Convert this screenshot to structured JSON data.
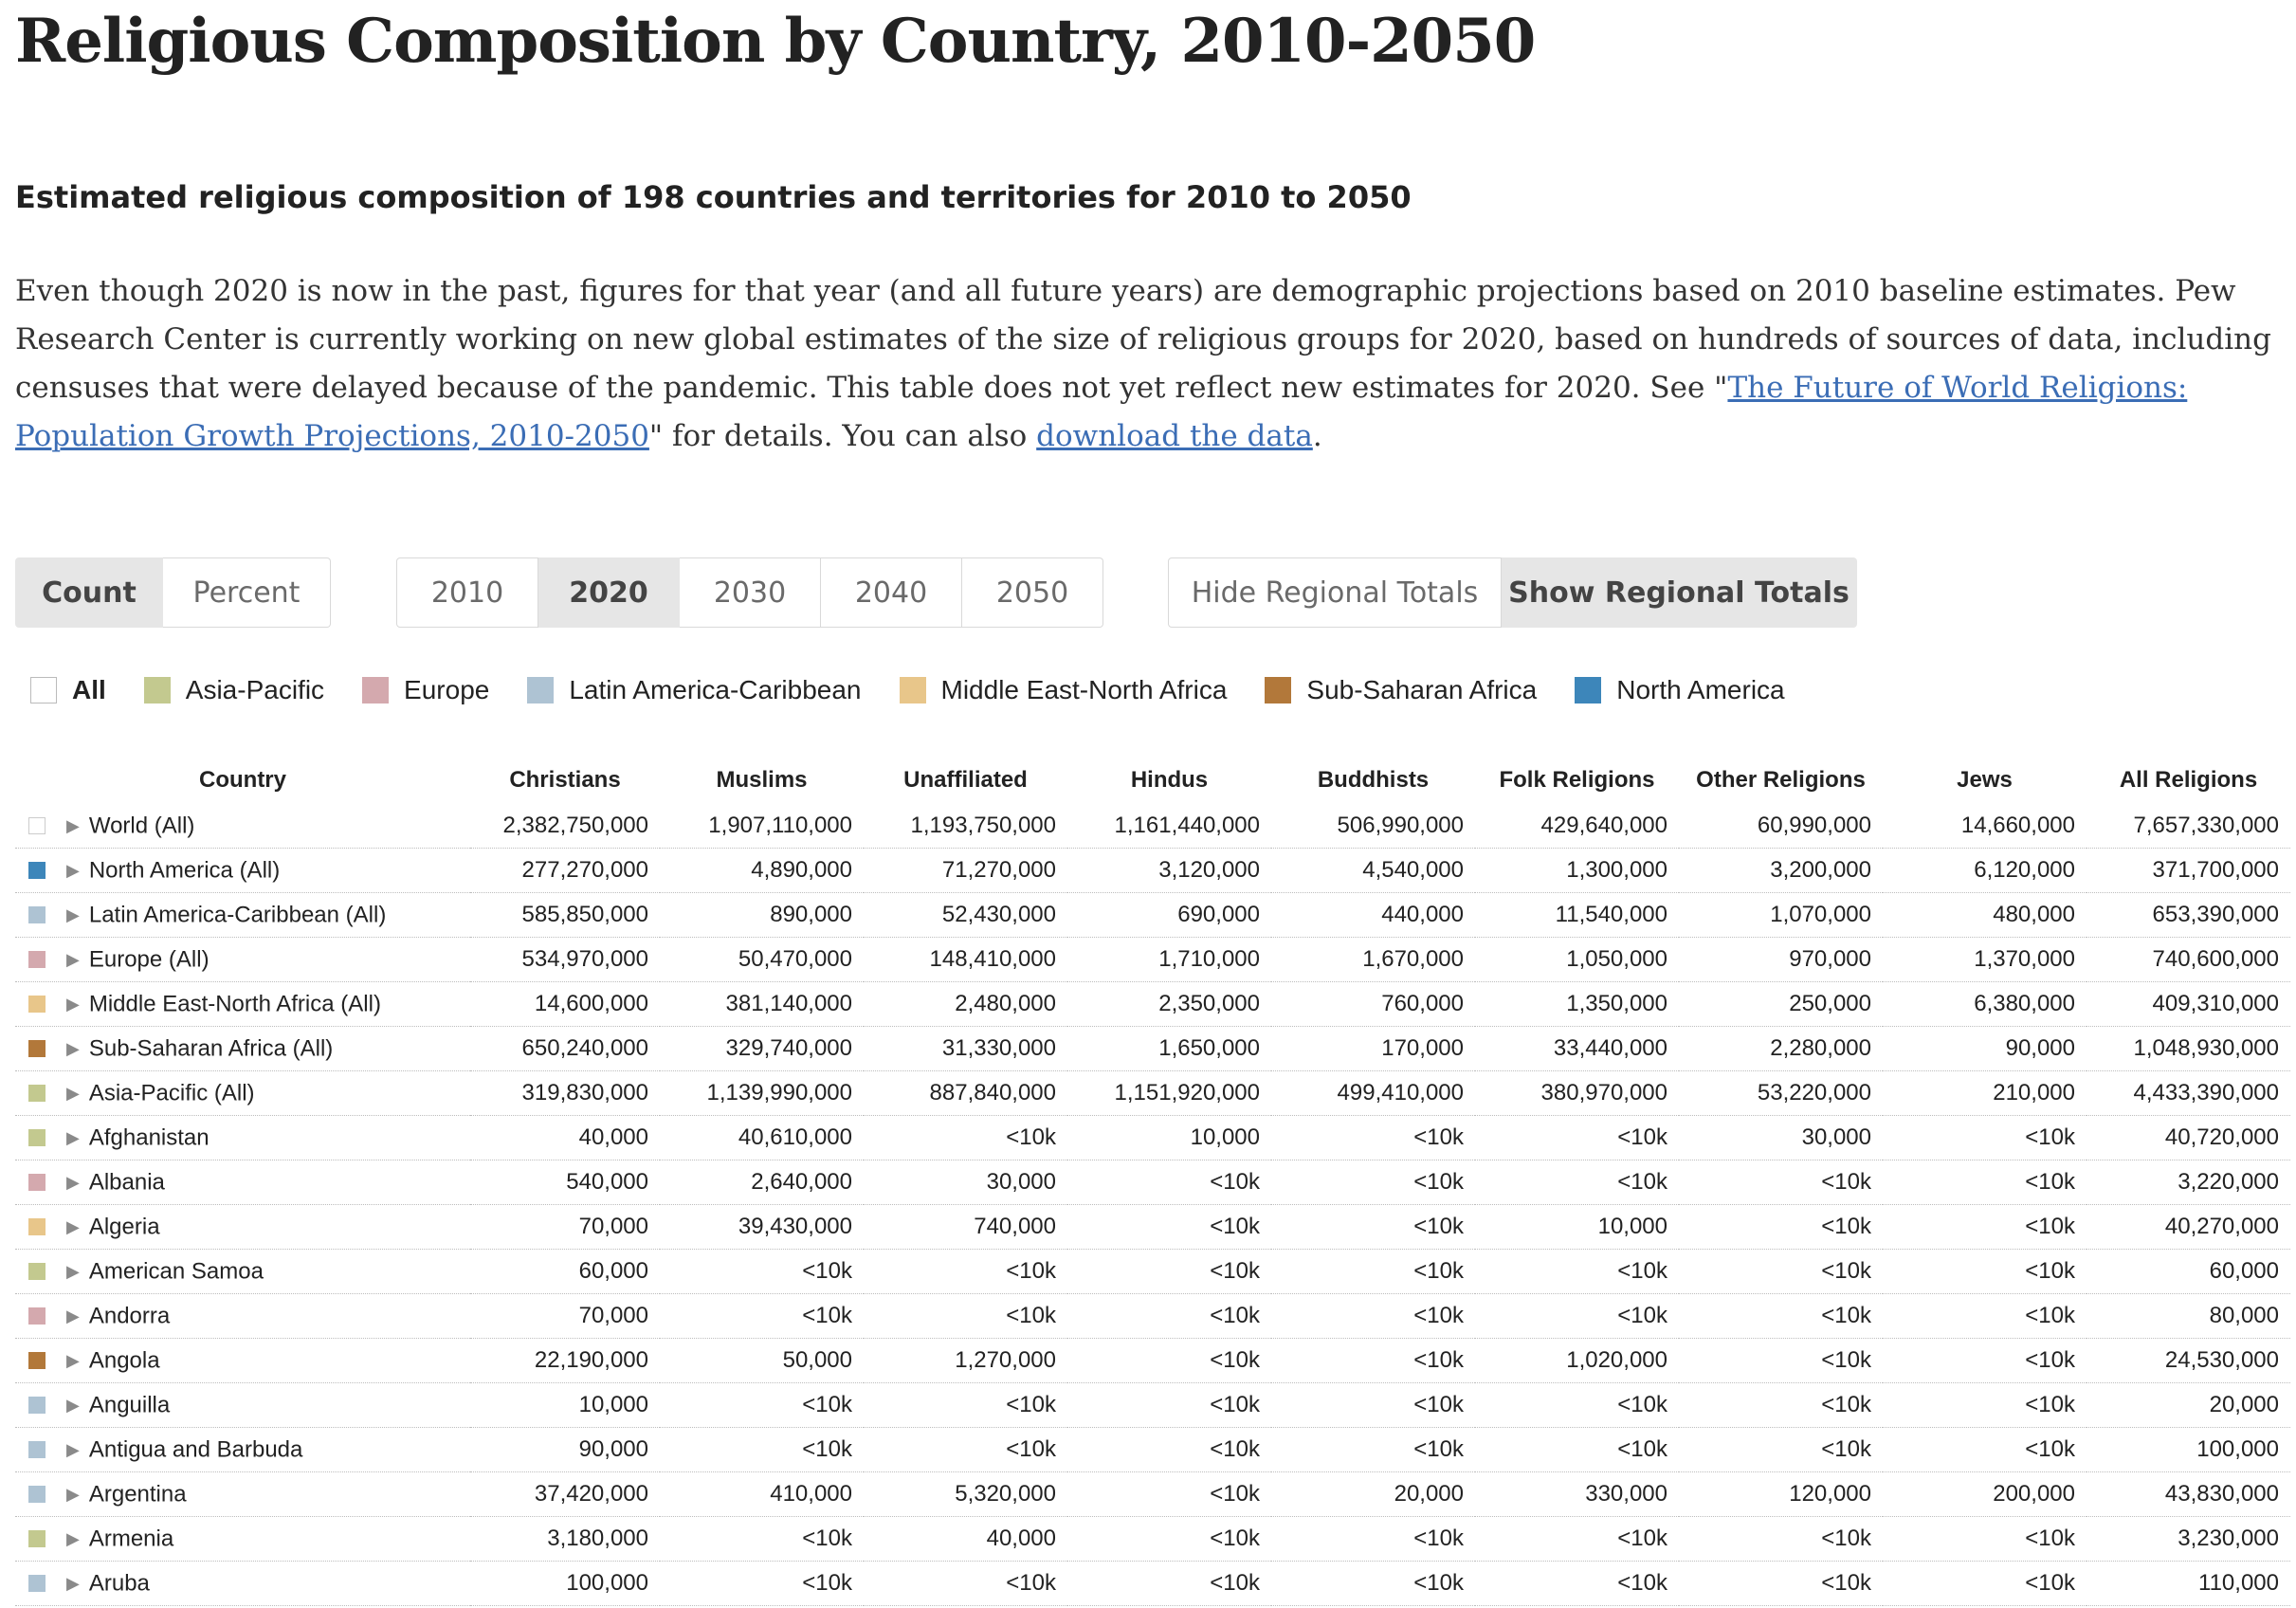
{
  "title": "Religious Composition by Country, 2010-2050",
  "subtitle": "Estimated religious composition of 198 countries and territories for 2010 to 2050",
  "description": {
    "part1": "Even though 2020 is now in the past, figures for that year (and all future years) are demographic projections based on 2010 baseline estimates. Pew Research Center is currently working on new global estimates of the size of religious groups for 2020, based on hundreds of sources of data, including censuses that were delayed because of the pandemic. This table does not yet reflect new estimates for 2020. See \"",
    "link1": "The Future of World Religions: Population Growth Projections, 2010-2050",
    "part2": "\" for details. You can also ",
    "link2": "download the data",
    "part3": "."
  },
  "controls": {
    "mode": [
      {
        "label": "Count",
        "active": true
      },
      {
        "label": "Percent",
        "active": false
      }
    ],
    "years": [
      {
        "label": "2010",
        "active": false
      },
      {
        "label": "2020",
        "active": true
      },
      {
        "label": "2030",
        "active": false
      },
      {
        "label": "2040",
        "active": false
      },
      {
        "label": "2050",
        "active": false
      }
    ],
    "regional": [
      {
        "label": "Hide Regional Totals",
        "active": false
      },
      {
        "label": "Show Regional Totals",
        "active": true
      }
    ]
  },
  "regions": [
    {
      "key": "all",
      "label": "All",
      "color": "#ffffff"
    },
    {
      "key": "ap",
      "label": "Asia-Pacific",
      "color": "#c3c98f"
    },
    {
      "key": "eu",
      "label": "Europe",
      "color": "#d4a9ae"
    },
    {
      "key": "lac",
      "label": "Latin America-Caribbean",
      "color": "#aec3d3"
    },
    {
      "key": "mena",
      "label": "Middle East-North Africa",
      "color": "#e8c68a"
    },
    {
      "key": "ssa",
      "label": "Sub-Saharan Africa",
      "color": "#b2783a"
    },
    {
      "key": "na",
      "label": "North America",
      "color": "#3d86ba"
    }
  ],
  "table": {
    "headers": [
      "Country",
      "Christians",
      "Muslims",
      "Unaffiliated",
      "Hindus",
      "Buddhists",
      "Folk Religions",
      "Other Religions",
      "Jews",
      "All Religions"
    ],
    "rows": [
      {
        "region": "all",
        "country": "World (All)",
        "values": [
          "2,382,750,000",
          "1,907,110,000",
          "1,193,750,000",
          "1,161,440,000",
          "506,990,000",
          "429,640,000",
          "60,990,000",
          "14,660,000",
          "7,657,330,000"
        ]
      },
      {
        "region": "na",
        "country": "North America (All)",
        "values": [
          "277,270,000",
          "4,890,000",
          "71,270,000",
          "3,120,000",
          "4,540,000",
          "1,300,000",
          "3,200,000",
          "6,120,000",
          "371,700,000"
        ]
      },
      {
        "region": "lac",
        "country": "Latin America-Caribbean (All)",
        "values": [
          "585,850,000",
          "890,000",
          "52,430,000",
          "690,000",
          "440,000",
          "11,540,000",
          "1,070,000",
          "480,000",
          "653,390,000"
        ]
      },
      {
        "region": "eu",
        "country": "Europe (All)",
        "values": [
          "534,970,000",
          "50,470,000",
          "148,410,000",
          "1,710,000",
          "1,670,000",
          "1,050,000",
          "970,000",
          "1,370,000",
          "740,600,000"
        ]
      },
      {
        "region": "mena",
        "country": "Middle East-North Africa (All)",
        "values": [
          "14,600,000",
          "381,140,000",
          "2,480,000",
          "2,350,000",
          "760,000",
          "1,350,000",
          "250,000",
          "6,380,000",
          "409,310,000"
        ]
      },
      {
        "region": "ssa",
        "country": "Sub-Saharan Africa (All)",
        "values": [
          "650,240,000",
          "329,740,000",
          "31,330,000",
          "1,650,000",
          "170,000",
          "33,440,000",
          "2,280,000",
          "90,000",
          "1,048,930,000"
        ]
      },
      {
        "region": "ap",
        "country": "Asia-Pacific (All)",
        "values": [
          "319,830,000",
          "1,139,990,000",
          "887,840,000",
          "1,151,920,000",
          "499,410,000",
          "380,970,000",
          "53,220,000",
          "210,000",
          "4,433,390,000"
        ]
      },
      {
        "region": "ap",
        "country": "Afghanistan",
        "values": [
          "40,000",
          "40,610,000",
          "<10k",
          "10,000",
          "<10k",
          "<10k",
          "30,000",
          "<10k",
          "40,720,000"
        ]
      },
      {
        "region": "eu",
        "country": "Albania",
        "values": [
          "540,000",
          "2,640,000",
          "30,000",
          "<10k",
          "<10k",
          "<10k",
          "<10k",
          "<10k",
          "3,220,000"
        ]
      },
      {
        "region": "mena",
        "country": "Algeria",
        "values": [
          "70,000",
          "39,430,000",
          "740,000",
          "<10k",
          "<10k",
          "10,000",
          "<10k",
          "<10k",
          "40,270,000"
        ]
      },
      {
        "region": "ap",
        "country": "American Samoa",
        "values": [
          "60,000",
          "<10k",
          "<10k",
          "<10k",
          "<10k",
          "<10k",
          "<10k",
          "<10k",
          "60,000"
        ]
      },
      {
        "region": "eu",
        "country": "Andorra",
        "values": [
          "70,000",
          "<10k",
          "<10k",
          "<10k",
          "<10k",
          "<10k",
          "<10k",
          "<10k",
          "80,000"
        ]
      },
      {
        "region": "ssa",
        "country": "Angola",
        "values": [
          "22,190,000",
          "50,000",
          "1,270,000",
          "<10k",
          "<10k",
          "1,020,000",
          "<10k",
          "<10k",
          "24,530,000"
        ]
      },
      {
        "region": "lac",
        "country": "Anguilla",
        "values": [
          "10,000",
          "<10k",
          "<10k",
          "<10k",
          "<10k",
          "<10k",
          "<10k",
          "<10k",
          "20,000"
        ]
      },
      {
        "region": "lac",
        "country": "Antigua and Barbuda",
        "values": [
          "90,000",
          "<10k",
          "<10k",
          "<10k",
          "<10k",
          "<10k",
          "<10k",
          "<10k",
          "100,000"
        ]
      },
      {
        "region": "lac",
        "country": "Argentina",
        "values": [
          "37,420,000",
          "410,000",
          "5,320,000",
          "<10k",
          "20,000",
          "330,000",
          "120,000",
          "200,000",
          "43,830,000"
        ]
      },
      {
        "region": "ap",
        "country": "Armenia",
        "values": [
          "3,180,000",
          "<10k",
          "40,000",
          "<10k",
          "<10k",
          "<10k",
          "<10k",
          "<10k",
          "3,230,000"
        ]
      },
      {
        "region": "lac",
        "country": "Aruba",
        "values": [
          "100,000",
          "<10k",
          "<10k",
          "<10k",
          "<10k",
          "<10k",
          "<10k",
          "<10k",
          "110,000"
        ]
      }
    ]
  }
}
